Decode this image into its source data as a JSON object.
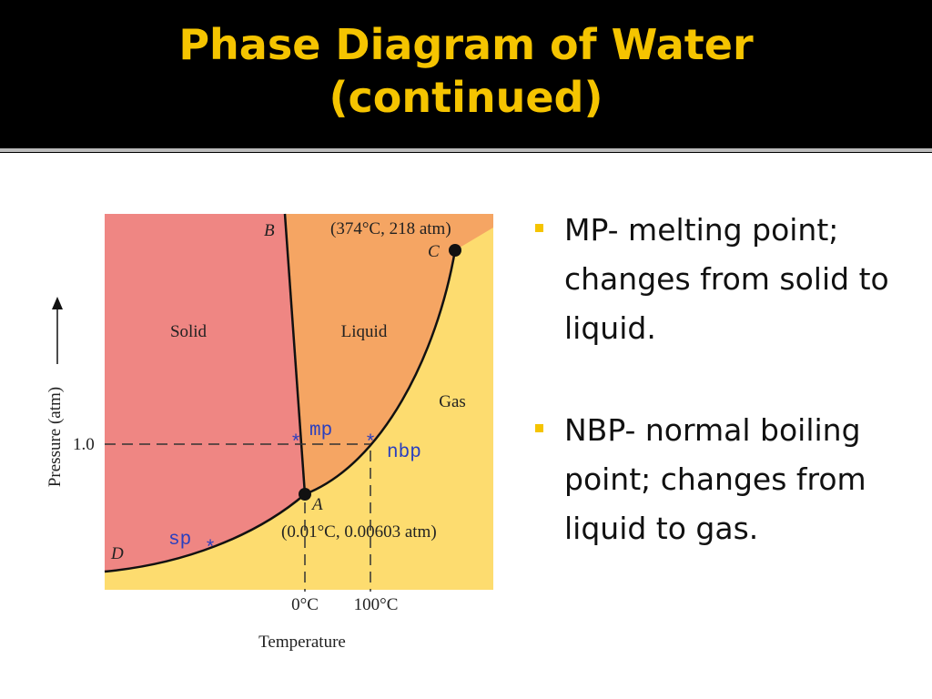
{
  "header": {
    "title_lines": [
      "Phase Diagram of Water",
      "(continued)"
    ]
  },
  "diagram": {
    "labels": {
      "b": "B",
      "c": "C",
      "a": "A",
      "d": "D",
      "critical": "(374°C, 218 atm)",
      "triple": "(0.01°C, 0.00603 atm)",
      "solid": "Solid",
      "liquid": "Liquid",
      "gas": "Gas",
      "mp": "mp",
      "nbp": "nbp",
      "sp": "sp",
      "one_atm": "1.0",
      "zero_c": "0°C",
      "hundred_c": "100°C",
      "y_axis": "Pressure (atm)",
      "x_axis": "Temperature"
    }
  },
  "bullets": [
    "MP- melting point; changes from solid to liquid.",
    "NBP- normal boiling point; changes from liquid to gas."
  ]
}
